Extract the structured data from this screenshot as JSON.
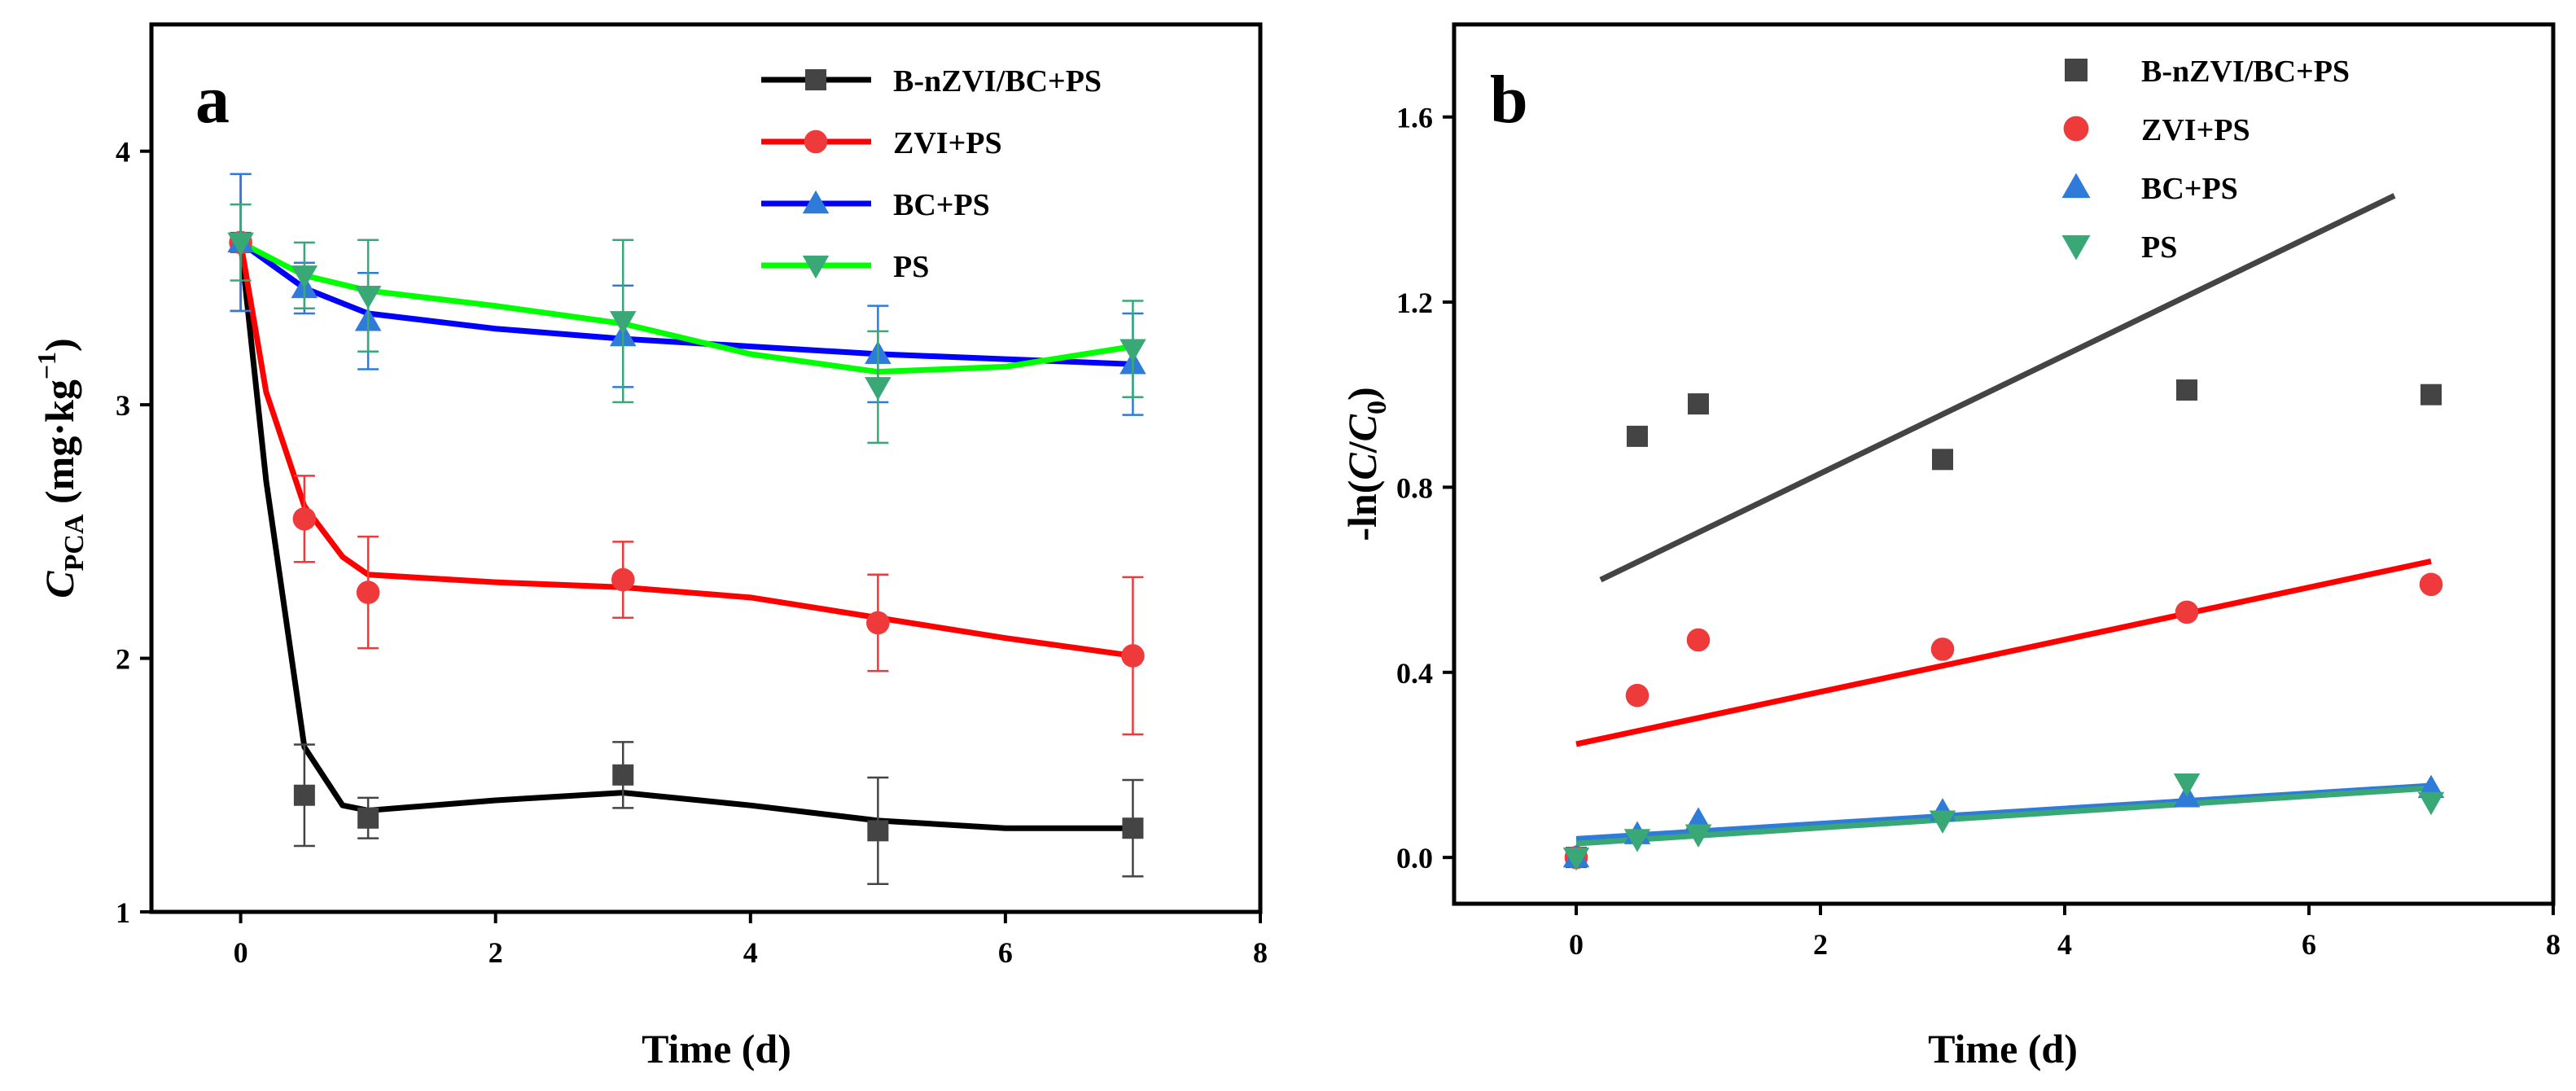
{
  "chart_data": [
    {
      "panel_label": "a",
      "type": "line",
      "xlabel": "Time (d)",
      "ylabel": {
        "main": "C",
        "sub": "PCA",
        "unit_open": " (mg·kg",
        "unit_sup": "−1",
        "unit_close": ")"
      },
      "xlim": [
        -0.7,
        8
      ],
      "ylim": [
        1,
        4.5
      ],
      "xticks": [
        0,
        2,
        4,
        6,
        8
      ],
      "yticks": [
        1,
        2,
        3,
        4
      ],
      "x": [
        0,
        0.5,
        1,
        3,
        5,
        7
      ],
      "legend_position": "top-right",
      "series": [
        {
          "name": "B-nZVI/BC+PS",
          "color": "#000000",
          "marker_color": "#444444",
          "marker": "square",
          "values": [
            3.64,
            1.46,
            1.37,
            1.54,
            1.32,
            1.33
          ],
          "errors": [
            0.27,
            0.2,
            0.08,
            0.13,
            0.21,
            0.19
          ],
          "curve": [
            [
              0,
              3.64
            ],
            [
              0.2,
              2.7
            ],
            [
              0.5,
              1.65
            ],
            [
              0.8,
              1.42
            ],
            [
              1,
              1.4
            ],
            [
              2,
              1.44
            ],
            [
              3,
              1.47
            ],
            [
              4,
              1.42
            ],
            [
              5,
              1.36
            ],
            [
              6,
              1.33
            ],
            [
              7,
              1.33
            ]
          ]
        },
        {
          "name": "ZVI+PS",
          "color": "#ff0000",
          "marker_color": "#ee3a3a",
          "marker": "circle",
          "values": [
            3.64,
            2.55,
            2.26,
            2.31,
            2.14,
            2.01
          ],
          "errors": [
            0.27,
            0.17,
            0.22,
            0.15,
            0.19,
            0.31
          ],
          "curve": [
            [
              0,
              3.64
            ],
            [
              0.2,
              3.05
            ],
            [
              0.5,
              2.6
            ],
            [
              0.8,
              2.4
            ],
            [
              1,
              2.33
            ],
            [
              2,
              2.3
            ],
            [
              3,
              2.28
            ],
            [
              4,
              2.24
            ],
            [
              5,
              2.16
            ],
            [
              6,
              2.08
            ],
            [
              7,
              2.01
            ]
          ]
        },
        {
          "name": "BC+PS",
          "color": "#0000ff",
          "marker_color": "#2f7bd9",
          "marker": "triangle-up",
          "values": [
            3.64,
            3.46,
            3.33,
            3.27,
            3.2,
            3.16
          ],
          "errors": [
            0.27,
            0.1,
            0.19,
            0.2,
            0.19,
            0.2
          ],
          "curve": [
            [
              0,
              3.64
            ],
            [
              0.5,
              3.46
            ],
            [
              1,
              3.36
            ],
            [
              2,
              3.3
            ],
            [
              3,
              3.26
            ],
            [
              4,
              3.23
            ],
            [
              5,
              3.2
            ],
            [
              6,
              3.18
            ],
            [
              7,
              3.16
            ]
          ]
        },
        {
          "name": "PS",
          "color": "#00ff00",
          "marker_color": "#3aa876",
          "marker": "triangle-down",
          "values": [
            3.64,
            3.51,
            3.43,
            3.33,
            3.07,
            3.22
          ],
          "errors": [
            0.15,
            0.13,
            0.22,
            0.32,
            0.22,
            0.19
          ],
          "curve": [
            [
              0,
              3.64
            ],
            [
              0.5,
              3.51
            ],
            [
              1,
              3.45
            ],
            [
              2,
              3.39
            ],
            [
              3,
              3.32
            ],
            [
              4,
              3.2
            ],
            [
              5,
              3.13
            ],
            [
              6,
              3.15
            ],
            [
              7,
              3.23
            ]
          ]
        }
      ]
    },
    {
      "panel_label": "b",
      "type": "scatter",
      "xlabel": "Time (d)",
      "ylabel": {
        "prefix": "-ln(",
        "c": "C",
        "slash": "/",
        "c0": "C",
        "c0_sub": "0",
        "suffix": ")"
      },
      "xlim": [
        -1,
        8
      ],
      "ylim": [
        -0.1,
        1.8
      ],
      "xticks": [
        0,
        2,
        4,
        6,
        8
      ],
      "yticks": [
        0.0,
        0.4,
        0.8,
        1.2,
        1.6
      ],
      "ytick_labels": [
        "0.0",
        "0.4",
        "0.8",
        "1.2",
        "1.6"
      ],
      "x": [
        0,
        0.5,
        1,
        3,
        5,
        7
      ],
      "legend_position": "top-right",
      "series": [
        {
          "name": "B-nZVI/BC+PS",
          "color": "#444444",
          "line_color": "#444444",
          "marker": "square",
          "values": [
            0,
            0.91,
            0.98,
            0.86,
            1.01,
            1.0
          ],
          "fit": [
            [
              0.2,
              0.6
            ],
            [
              6.7,
              1.43
            ]
          ]
        },
        {
          "name": "ZVI+PS",
          "color": "#ee3a3a",
          "line_color": "#ff0000",
          "marker": "circle",
          "values": [
            0,
            0.35,
            0.47,
            0.45,
            0.53,
            0.59
          ],
          "fit": [
            [
              0,
              0.245
            ],
            [
              7,
              0.64
            ]
          ]
        },
        {
          "name": "BC+PS",
          "color": "#2f7bd9",
          "line_color": "#2f7bd9",
          "marker": "triangle-up",
          "values": [
            0,
            0.05,
            0.08,
            0.1,
            0.13,
            0.15
          ],
          "fit": [
            [
              0,
              0.04
            ],
            [
              7,
              0.155
            ]
          ]
        },
        {
          "name": "PS",
          "color": "#3aa876",
          "line_color": "#3aa876",
          "marker": "triangle-down",
          "values": [
            0,
            0.04,
            0.05,
            0.08,
            0.16,
            0.12
          ],
          "fit": [
            [
              0,
              0.03
            ],
            [
              7,
              0.15
            ]
          ]
        }
      ]
    }
  ]
}
